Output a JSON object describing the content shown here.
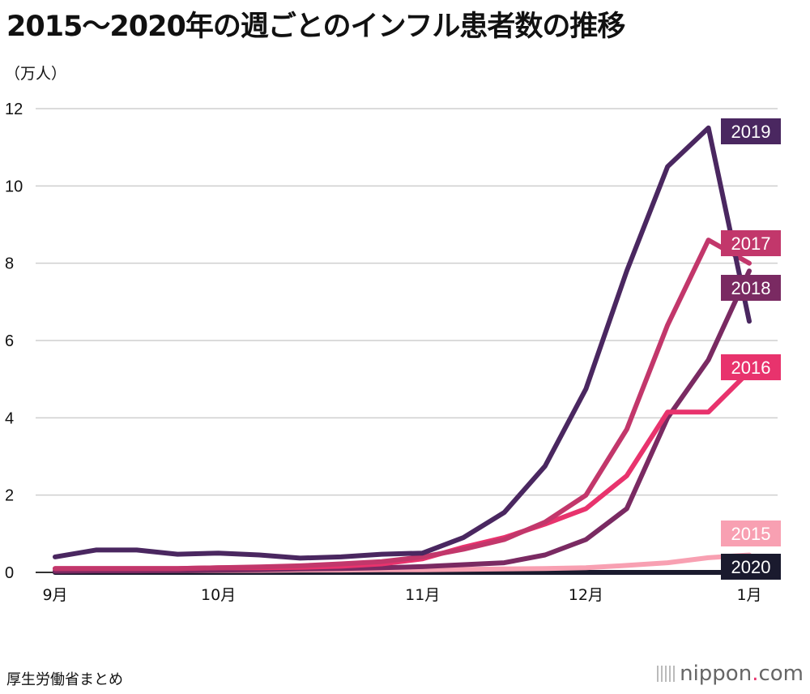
{
  "title": "2015～2020年の週ごとのインフル患者数の推移",
  "unit_label": "（万人）",
  "source": "厚生労働省まとめ",
  "brand": {
    "name": "nippon",
    "dot": ".",
    "tld": "com"
  },
  "chart_data": {
    "type": "line",
    "ylim": [
      0,
      12
    ],
    "yticks": [
      0,
      2,
      4,
      6,
      8,
      10,
      12
    ],
    "x_index_range": [
      0,
      17
    ],
    "xticks": [
      {
        "label": "9月",
        "x": 0
      },
      {
        "label": "10月",
        "x": 4
      },
      {
        "label": "11月",
        "x": 9
      },
      {
        "label": "12月",
        "x": 13
      },
      {
        "label": "1月",
        "x": 17
      }
    ],
    "grid": true,
    "series": [
      {
        "name": "2015",
        "color": "#f8a0b2",
        "values": [
          0.05,
          0.05,
          0.05,
          0.05,
          0.05,
          0.05,
          0.06,
          0.06,
          0.07,
          0.07,
          0.08,
          0.09,
          0.1,
          0.12,
          0.18,
          0.25,
          0.38,
          0.45
        ]
      },
      {
        "name": "2016",
        "color": "#e8336d",
        "values": [
          0.1,
          0.1,
          0.1,
          0.1,
          0.12,
          0.12,
          0.13,
          0.16,
          0.22,
          0.35,
          0.65,
          0.9,
          1.25,
          1.65,
          2.5,
          4.15,
          4.15,
          5.2
        ]
      },
      {
        "name": "2017",
        "color": "#c2376b",
        "values": [
          0.1,
          0.1,
          0.1,
          0.1,
          0.12,
          0.14,
          0.17,
          0.22,
          0.28,
          0.4,
          0.6,
          0.85,
          1.3,
          2.0,
          3.7,
          6.4,
          8.6,
          8.0
        ]
      },
      {
        "name": "2018",
        "color": "#7a2a62",
        "values": [
          0.03,
          0.04,
          0.04,
          0.05,
          0.06,
          0.07,
          0.09,
          0.1,
          0.12,
          0.15,
          0.2,
          0.25,
          0.45,
          0.85,
          1.65,
          4.0,
          5.5,
          7.8
        ]
      },
      {
        "name": "2019",
        "color": "#4a2760",
        "values": [
          0.4,
          0.58,
          0.58,
          0.47,
          0.5,
          0.45,
          0.37,
          0.4,
          0.47,
          0.5,
          0.9,
          1.55,
          2.75,
          4.75,
          7.8,
          10.5,
          11.5,
          6.5
        ]
      },
      {
        "name": "2020",
        "color": "#1a1a2e",
        "values": [
          0.0,
          0.0,
          0.0,
          0.0,
          0.0,
          0.0,
          0.0,
          0.0,
          0.0,
          0.0,
          0.0,
          0.0,
          0.0,
          0.0,
          0.0,
          0.0,
          0.0,
          0.0
        ]
      }
    ]
  }
}
